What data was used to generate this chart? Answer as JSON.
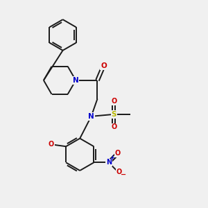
{
  "background_color": "#f0f0f0",
  "bond_color": "#1a1a1a",
  "nitrogen_color": "#0000cc",
  "oxygen_color": "#cc0000",
  "sulfur_color": "#b8b800",
  "line_width": 1.4,
  "figsize": [
    3.0,
    3.0
  ],
  "dpi": 100,
  "xlim": [
    0,
    10
  ],
  "ylim": [
    0,
    10
  ]
}
